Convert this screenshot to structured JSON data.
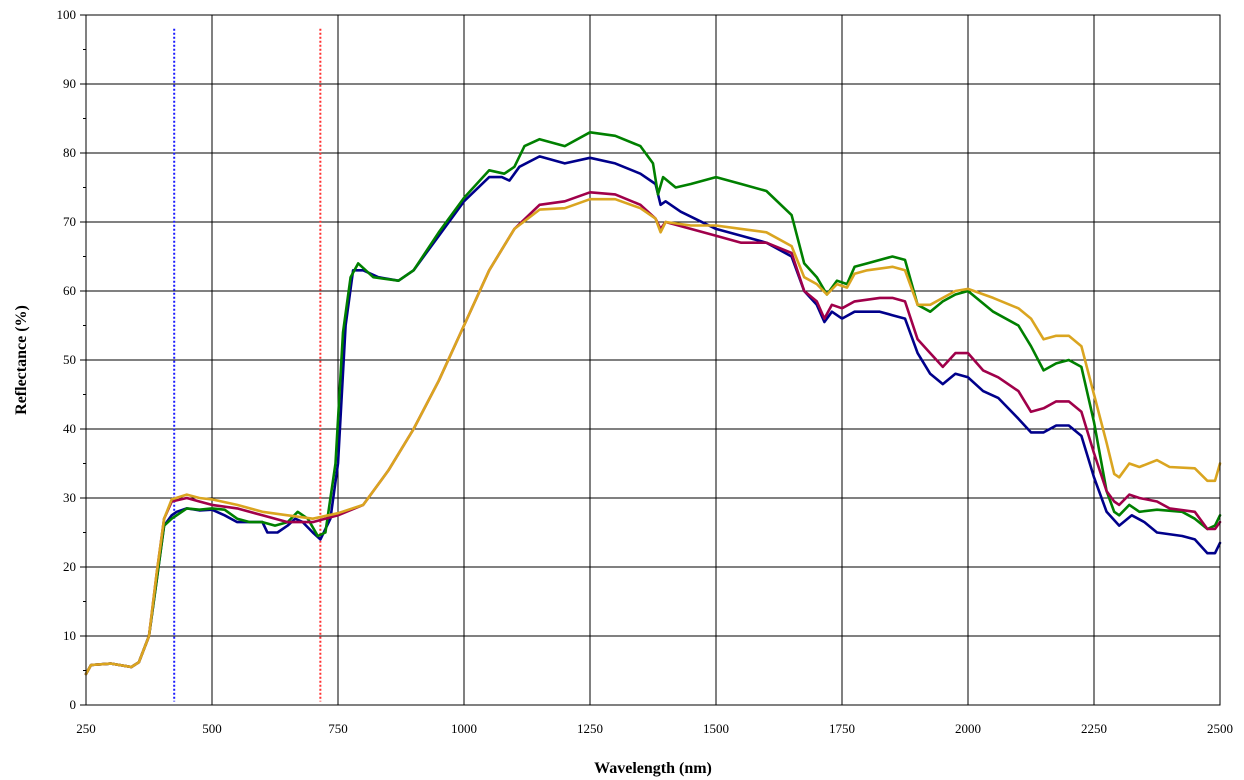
{
  "chart_data": {
    "type": "line",
    "title": "",
    "xlabel": "Wavelength (nm)",
    "ylabel": "Reflectance (%)",
    "xlim": [
      250,
      2500
    ],
    "ylim": [
      0,
      100
    ],
    "xticks": [
      250,
      500,
      750,
      1000,
      1250,
      1500,
      1750,
      2000,
      2250,
      2500
    ],
    "yticks": [
      0,
      10,
      20,
      30,
      40,
      50,
      60,
      70,
      80,
      90,
      100
    ],
    "grid": true,
    "legend": "none",
    "markers": [
      {
        "x": 425,
        "color": "#1a1aff"
      },
      {
        "x": 715,
        "color": "#ff3030"
      }
    ],
    "series": [
      {
        "color": "#00008b",
        "points": [
          [
            250,
            4.5
          ],
          [
            260,
            5.8
          ],
          [
            300,
            6.0
          ],
          [
            340,
            5.5
          ],
          [
            355,
            6.2
          ],
          [
            375,
            10
          ],
          [
            390,
            18
          ],
          [
            405,
            26
          ],
          [
            420,
            27.5
          ],
          [
            430,
            28
          ],
          [
            450,
            28.5
          ],
          [
            475,
            28.2
          ],
          [
            500,
            28.3
          ],
          [
            525,
            27.5
          ],
          [
            550,
            26.5
          ],
          [
            575,
            26.5
          ],
          [
            600,
            26.5
          ],
          [
            610,
            25
          ],
          [
            630,
            25
          ],
          [
            650,
            26
          ],
          [
            665,
            27
          ],
          [
            680,
            26.5
          ],
          [
            700,
            25
          ],
          [
            715,
            24
          ],
          [
            735,
            27
          ],
          [
            750,
            35
          ],
          [
            765,
            55
          ],
          [
            780,
            63
          ],
          [
            800,
            63
          ],
          [
            830,
            62
          ],
          [
            870,
            61.5
          ],
          [
            900,
            63
          ],
          [
            950,
            68
          ],
          [
            1000,
            73
          ],
          [
            1050,
            76.5
          ],
          [
            1075,
            76.5
          ],
          [
            1090,
            76
          ],
          [
            1110,
            78
          ],
          [
            1150,
            79.5
          ],
          [
            1200,
            78.5
          ],
          [
            1250,
            79.3
          ],
          [
            1300,
            78.5
          ],
          [
            1350,
            77
          ],
          [
            1380,
            75.5
          ],
          [
            1390,
            72.5
          ],
          [
            1400,
            73
          ],
          [
            1430,
            71.5
          ],
          [
            1500,
            69
          ],
          [
            1550,
            68
          ],
          [
            1600,
            67
          ],
          [
            1650,
            65
          ],
          [
            1675,
            60
          ],
          [
            1700,
            58
          ],
          [
            1715,
            55.5
          ],
          [
            1730,
            57
          ],
          [
            1750,
            56
          ],
          [
            1775,
            57
          ],
          [
            1825,
            57
          ],
          [
            1850,
            56.5
          ],
          [
            1875,
            56
          ],
          [
            1900,
            51
          ],
          [
            1925,
            48
          ],
          [
            1950,
            46.5
          ],
          [
            1975,
            48
          ],
          [
            2000,
            47.5
          ],
          [
            2030,
            45.5
          ],
          [
            2060,
            44.5
          ],
          [
            2100,
            41.5
          ],
          [
            2125,
            39.5
          ],
          [
            2150,
            39.5
          ],
          [
            2175,
            40.5
          ],
          [
            2200,
            40.5
          ],
          [
            2225,
            39
          ],
          [
            2250,
            33
          ],
          [
            2275,
            28
          ],
          [
            2300,
            26
          ],
          [
            2325,
            27.5
          ],
          [
            2350,
            26.5
          ],
          [
            2375,
            25
          ],
          [
            2425,
            24.5
          ],
          [
            2450,
            24
          ],
          [
            2475,
            22
          ],
          [
            2490,
            22
          ],
          [
            2500,
            23.5
          ]
        ]
      },
      {
        "color": "#008000",
        "points": [
          [
            250,
            4.5
          ],
          [
            260,
            5.8
          ],
          [
            300,
            6.0
          ],
          [
            340,
            5.5
          ],
          [
            355,
            6.2
          ],
          [
            375,
            10
          ],
          [
            390,
            18
          ],
          [
            405,
            26
          ],
          [
            420,
            27
          ],
          [
            430,
            27.5
          ],
          [
            450,
            28.5
          ],
          [
            475,
            28.3
          ],
          [
            500,
            28.5
          ],
          [
            525,
            28.3
          ],
          [
            550,
            27
          ],
          [
            575,
            26.5
          ],
          [
            600,
            26.5
          ],
          [
            625,
            26
          ],
          [
            650,
            26.5
          ],
          [
            670,
            28
          ],
          [
            690,
            27
          ],
          [
            710,
            24.5
          ],
          [
            725,
            25
          ],
          [
            745,
            35
          ],
          [
            760,
            54
          ],
          [
            775,
            62
          ],
          [
            790,
            64
          ],
          [
            820,
            62
          ],
          [
            870,
            61.5
          ],
          [
            900,
            63
          ],
          [
            950,
            68.5
          ],
          [
            1000,
            73.5
          ],
          [
            1050,
            77.5
          ],
          [
            1080,
            77
          ],
          [
            1100,
            78
          ],
          [
            1120,
            81
          ],
          [
            1150,
            82
          ],
          [
            1200,
            81
          ],
          [
            1250,
            83
          ],
          [
            1300,
            82.5
          ],
          [
            1350,
            81
          ],
          [
            1375,
            78.5
          ],
          [
            1385,
            74
          ],
          [
            1395,
            76.5
          ],
          [
            1420,
            75
          ],
          [
            1450,
            75.5
          ],
          [
            1500,
            76.5
          ],
          [
            1550,
            75.5
          ],
          [
            1600,
            74.5
          ],
          [
            1650,
            71
          ],
          [
            1675,
            64
          ],
          [
            1700,
            62
          ],
          [
            1720,
            59.5
          ],
          [
            1740,
            61.5
          ],
          [
            1760,
            61
          ],
          [
            1775,
            63.5
          ],
          [
            1800,
            64
          ],
          [
            1850,
            65
          ],
          [
            1875,
            64.5
          ],
          [
            1900,
            58
          ],
          [
            1925,
            57
          ],
          [
            1950,
            58.5
          ],
          [
            1975,
            59.5
          ],
          [
            2000,
            60
          ],
          [
            2050,
            57
          ],
          [
            2100,
            55
          ],
          [
            2125,
            52
          ],
          [
            2150,
            48.5
          ],
          [
            2175,
            49.5
          ],
          [
            2200,
            50
          ],
          [
            2225,
            49
          ],
          [
            2250,
            41
          ],
          [
            2275,
            31
          ],
          [
            2290,
            28
          ],
          [
            2300,
            27.5
          ],
          [
            2320,
            29
          ],
          [
            2340,
            28
          ],
          [
            2375,
            28.3
          ],
          [
            2425,
            28
          ],
          [
            2450,
            27
          ],
          [
            2475,
            25.5
          ],
          [
            2490,
            26
          ],
          [
            2500,
            27.5
          ]
        ]
      },
      {
        "color": "#a0004a",
        "points": [
          [
            250,
            4.5
          ],
          [
            260,
            5.8
          ],
          [
            300,
            6.0
          ],
          [
            340,
            5.5
          ],
          [
            355,
            6.2
          ],
          [
            375,
            10
          ],
          [
            390,
            19
          ],
          [
            405,
            27
          ],
          [
            420,
            29.5
          ],
          [
            450,
            30
          ],
          [
            475,
            29.5
          ],
          [
            500,
            29
          ],
          [
            550,
            28.5
          ],
          [
            600,
            27.5
          ],
          [
            650,
            26.5
          ],
          [
            700,
            26.5
          ],
          [
            750,
            27.5
          ],
          [
            800,
            29
          ],
          [
            850,
            34
          ],
          [
            900,
            40
          ],
          [
            950,
            47
          ],
          [
            1000,
            55
          ],
          [
            1050,
            63
          ],
          [
            1100,
            69
          ],
          [
            1150,
            72.5
          ],
          [
            1200,
            73
          ],
          [
            1250,
            74.3
          ],
          [
            1300,
            74
          ],
          [
            1350,
            72.5
          ],
          [
            1380,
            70.5
          ],
          [
            1390,
            69
          ],
          [
            1400,
            70
          ],
          [
            1450,
            69
          ],
          [
            1500,
            68
          ],
          [
            1550,
            67
          ],
          [
            1600,
            67
          ],
          [
            1650,
            65.5
          ],
          [
            1675,
            60
          ],
          [
            1700,
            58.5
          ],
          [
            1715,
            56
          ],
          [
            1730,
            58
          ],
          [
            1750,
            57.5
          ],
          [
            1775,
            58.5
          ],
          [
            1825,
            59
          ],
          [
            1850,
            59
          ],
          [
            1875,
            58.5
          ],
          [
            1900,
            53
          ],
          [
            1925,
            51
          ],
          [
            1950,
            49
          ],
          [
            1975,
            51
          ],
          [
            2000,
            51
          ],
          [
            2030,
            48.5
          ],
          [
            2060,
            47.5
          ],
          [
            2100,
            45.5
          ],
          [
            2125,
            42.5
          ],
          [
            2150,
            43
          ],
          [
            2175,
            44
          ],
          [
            2200,
            44
          ],
          [
            2225,
            42.5
          ],
          [
            2250,
            36.5
          ],
          [
            2275,
            31
          ],
          [
            2290,
            29.5
          ],
          [
            2300,
            29
          ],
          [
            2320,
            30.5
          ],
          [
            2340,
            30
          ],
          [
            2375,
            29.5
          ],
          [
            2400,
            28.5
          ],
          [
            2450,
            28
          ],
          [
            2475,
            25.5
          ],
          [
            2490,
            25.5
          ],
          [
            2500,
            26.5
          ]
        ]
      },
      {
        "color": "#daa520",
        "points": [
          [
            250,
            4.5
          ],
          [
            260,
            5.8
          ],
          [
            300,
            6.0
          ],
          [
            340,
            5.5
          ],
          [
            355,
            6.2
          ],
          [
            375,
            10
          ],
          [
            390,
            19
          ],
          [
            405,
            27
          ],
          [
            420,
            29.8
          ],
          [
            450,
            30.5
          ],
          [
            475,
            30
          ],
          [
            500,
            29.8
          ],
          [
            550,
            29
          ],
          [
            600,
            28
          ],
          [
            650,
            27.5
          ],
          [
            700,
            27
          ],
          [
            750,
            27.8
          ],
          [
            800,
            29
          ],
          [
            850,
            34
          ],
          [
            900,
            40
          ],
          [
            950,
            47
          ],
          [
            1000,
            55
          ],
          [
            1050,
            63
          ],
          [
            1100,
            69
          ],
          [
            1150,
            71.8
          ],
          [
            1200,
            72
          ],
          [
            1250,
            73.3
          ],
          [
            1300,
            73.3
          ],
          [
            1350,
            72
          ],
          [
            1380,
            70.5
          ],
          [
            1390,
            68.5
          ],
          [
            1400,
            70
          ],
          [
            1450,
            69.5
          ],
          [
            1500,
            69.5
          ],
          [
            1550,
            69
          ],
          [
            1600,
            68.5
          ],
          [
            1650,
            66.5
          ],
          [
            1675,
            62
          ],
          [
            1700,
            61
          ],
          [
            1720,
            59.5
          ],
          [
            1740,
            61
          ],
          [
            1760,
            60.5
          ],
          [
            1775,
            62.5
          ],
          [
            1800,
            63
          ],
          [
            1850,
            63.5
          ],
          [
            1875,
            63
          ],
          [
            1900,
            58
          ],
          [
            1925,
            58
          ],
          [
            1950,
            59
          ],
          [
            1975,
            60
          ],
          [
            2000,
            60.3
          ],
          [
            2050,
            59
          ],
          [
            2100,
            57.5
          ],
          [
            2125,
            56
          ],
          [
            2150,
            53
          ],
          [
            2175,
            53.5
          ],
          [
            2200,
            53.5
          ],
          [
            2225,
            52
          ],
          [
            2250,
            45
          ],
          [
            2275,
            38
          ],
          [
            2290,
            33.5
          ],
          [
            2300,
            33
          ],
          [
            2320,
            35
          ],
          [
            2340,
            34.5
          ],
          [
            2375,
            35.5
          ],
          [
            2400,
            34.5
          ],
          [
            2450,
            34.3
          ],
          [
            2475,
            32.5
          ],
          [
            2490,
            32.5
          ],
          [
            2500,
            35
          ]
        ]
      }
    ]
  }
}
